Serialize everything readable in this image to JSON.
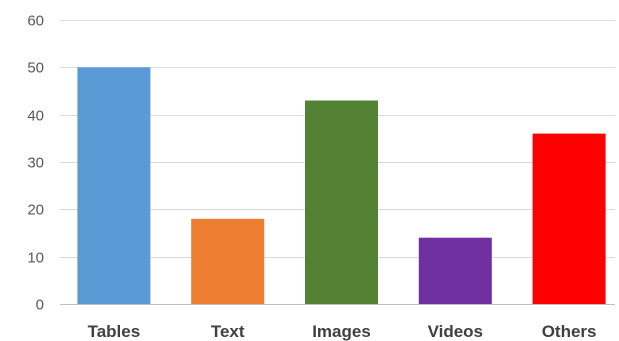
{
  "chart_data": {
    "type": "bar",
    "title": "",
    "xlabel": "",
    "ylabel": "",
    "categories": [
      "Tables",
      "Text",
      "Images",
      "Videos",
      "Others"
    ],
    "values": [
      50,
      18,
      43,
      14,
      36
    ],
    "colors": [
      "#5b9bd5",
      "#ed7d31",
      "#548235",
      "#7030a0",
      "#ff0000"
    ],
    "ylim": [
      0,
      60
    ],
    "yticks": [
      0,
      10,
      20,
      30,
      40,
      50,
      60
    ],
    "grid": true,
    "legend": "none"
  }
}
